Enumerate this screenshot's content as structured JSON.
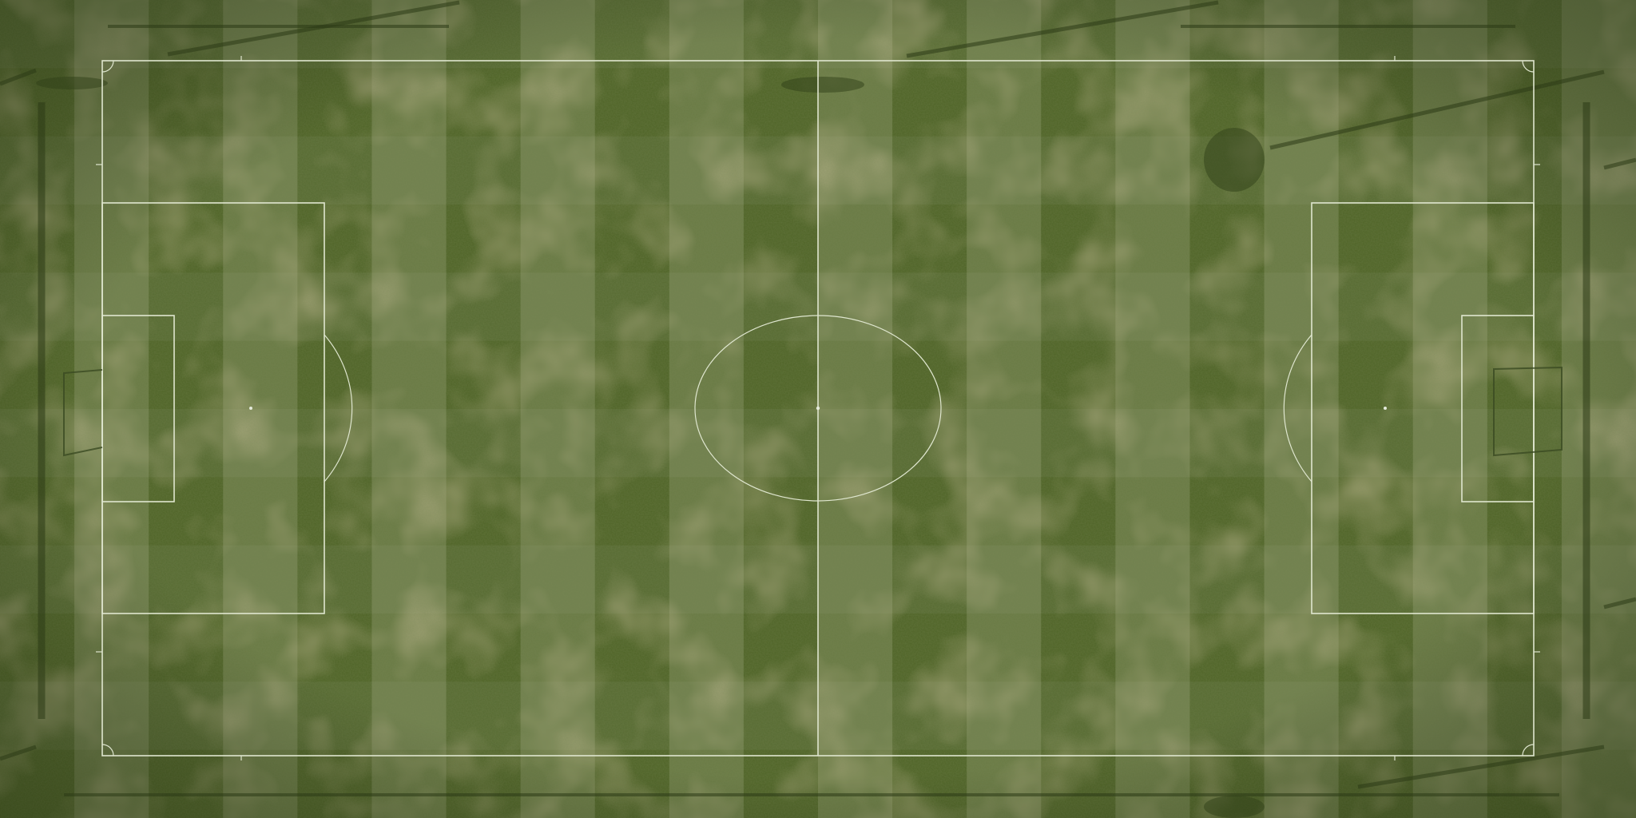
{
  "scene": {
    "view": "top-down",
    "surface": "grass",
    "colors": {
      "grass_light": "#6a7b45",
      "grass_dark": "#4f6427",
      "lines": "#dfe6cf",
      "shadow": "#2b3a16"
    },
    "stripe_count": 22
  },
  "pitch": {
    "features": [
      "touchlines",
      "halfway-line",
      "center-circle",
      "penalty-areas",
      "goal-areas",
      "penalty-arcs",
      "corner-arcs",
      "goals"
    ]
  }
}
